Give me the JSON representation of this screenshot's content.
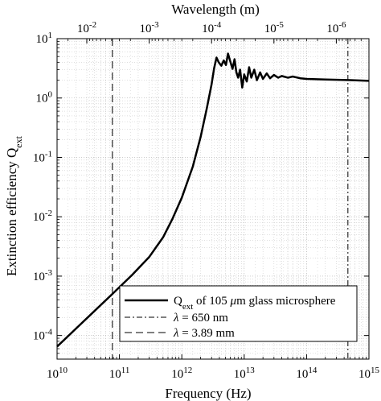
{
  "chart_data": {
    "type": "line",
    "xlabel": "Frequency (Hz)",
    "ylabel_main": "Extinction efficiency Q",
    "ylabel_sub": "ext",
    "top_axis_label": "Wavelength (m)",
    "x_scale": "log",
    "y_scale": "log",
    "xlim": [
      10000000000.0,
      1000000000000000.0
    ],
    "ylim": [
      4e-05,
      10
    ],
    "grid": true,
    "legend_position": "bottom-right",
    "x_ticks": [
      {
        "value": 10000000000.0,
        "base": "10",
        "exp": "10"
      },
      {
        "value": 100000000000.0,
        "base": "10",
        "exp": "11"
      },
      {
        "value": 1000000000000.0,
        "base": "10",
        "exp": "12"
      },
      {
        "value": 10000000000000.0,
        "base": "10",
        "exp": "13"
      },
      {
        "value": 100000000000000.0,
        "base": "10",
        "exp": "14"
      },
      {
        "value": 1000000000000000.0,
        "base": "10",
        "exp": "15"
      }
    ],
    "y_ticks": [
      {
        "value": 0.0001,
        "base": "10",
        "exp": "-4"
      },
      {
        "value": 0.001,
        "base": "10",
        "exp": "-3"
      },
      {
        "value": 0.01,
        "base": "10",
        "exp": "-2"
      },
      {
        "value": 0.1,
        "base": "10",
        "exp": "-1"
      },
      {
        "value": 1,
        "base": "10",
        "exp": "0"
      },
      {
        "value": 10,
        "base": "10",
        "exp": "1"
      }
    ],
    "top_ticks": [
      {
        "wavelength_m": 0.01,
        "base": "10",
        "exp": "-2"
      },
      {
        "wavelength_m": 0.001,
        "base": "10",
        "exp": "-3"
      },
      {
        "wavelength_m": 0.0001,
        "base": "10",
        "exp": "-4"
      },
      {
        "wavelength_m": 1e-05,
        "base": "10",
        "exp": "-5"
      },
      {
        "wavelength_m": 1e-06,
        "base": "10",
        "exp": "-6"
      }
    ],
    "series": [
      {
        "name_main": "Q",
        "name_sub": "ext",
        "name_rest": " of 105 ",
        "name_mu": "μ",
        "name_tail": "m glass microsphere",
        "style": "solid",
        "points": [
          [
            10000000000.0,
            6.5e-05
          ],
          [
            20000000000.0,
            0.00013
          ],
          [
            40000000000.0,
            0.00026
          ],
          [
            80000000000.0,
            0.00052
          ],
          [
            160000000000.0,
            0.00105
          ],
          [
            300000000000.0,
            0.0021
          ],
          [
            500000000000.0,
            0.0045
          ],
          [
            700000000000.0,
            0.009
          ],
          [
            1000000000000.0,
            0.021
          ],
          [
            1500000000000.0,
            0.07
          ],
          [
            2000000000000.0,
            0.22
          ],
          [
            2500000000000.0,
            0.65
          ],
          [
            3000000000000.0,
            1.7
          ],
          [
            3300000000000.0,
            3.2
          ],
          [
            3600000000000.0,
            4.8
          ],
          [
            3900000000000.0,
            4.0
          ],
          [
            4300000000000.0,
            3.5
          ],
          [
            4700000000000.0,
            4.3
          ],
          [
            5100000000000.0,
            3.6
          ],
          [
            5500000000000.0,
            5.6
          ],
          [
            6000000000000.0,
            4.1
          ],
          [
            6500000000000.0,
            3.1
          ],
          [
            7000000000000.0,
            4.5
          ],
          [
            7500000000000.0,
            2.7
          ],
          [
            8000000000000.0,
            2.2
          ],
          [
            8600000000000.0,
            3.0
          ],
          [
            9300000000000.0,
            1.5
          ],
          [
            10000000000000.0,
            2.5
          ],
          [
            11000000000000.0,
            1.9
          ],
          [
            12000000000000.0,
            3.3
          ],
          [
            13000000000000.0,
            2.2
          ],
          [
            14500000000000.0,
            3.0
          ],
          [
            16000000000000.0,
            2.0
          ],
          [
            18000000000000.0,
            2.7
          ],
          [
            20000000000000.0,
            2.1
          ],
          [
            23000000000000.0,
            2.6
          ],
          [
            26000000000000.0,
            2.15
          ],
          [
            30000000000000.0,
            2.45
          ],
          [
            35000000000000.0,
            2.2
          ],
          [
            40000000000000.0,
            2.35
          ],
          [
            50000000000000.0,
            2.2
          ],
          [
            60000000000000.0,
            2.3
          ],
          [
            80000000000000.0,
            2.15
          ],
          [
            100000000000000.0,
            2.1
          ],
          [
            200000000000000.0,
            2.05
          ],
          [
            500000000000000.0,
            2.0
          ],
          [
            1000000000000000.0,
            1.95
          ]
        ]
      }
    ],
    "reference_lines": [
      {
        "x": 460000000000000.0,
        "style": "dashdot",
        "label_sym": "λ",
        "label_text": " = 650 nm"
      },
      {
        "x": 77000000000.0,
        "style": "dashed",
        "label_sym": "λ",
        "label_text": " = 3.89 mm"
      }
    ],
    "colors": {
      "line": "#000000",
      "grid": "#b0b0b0",
      "background": "#ffffff"
    }
  }
}
